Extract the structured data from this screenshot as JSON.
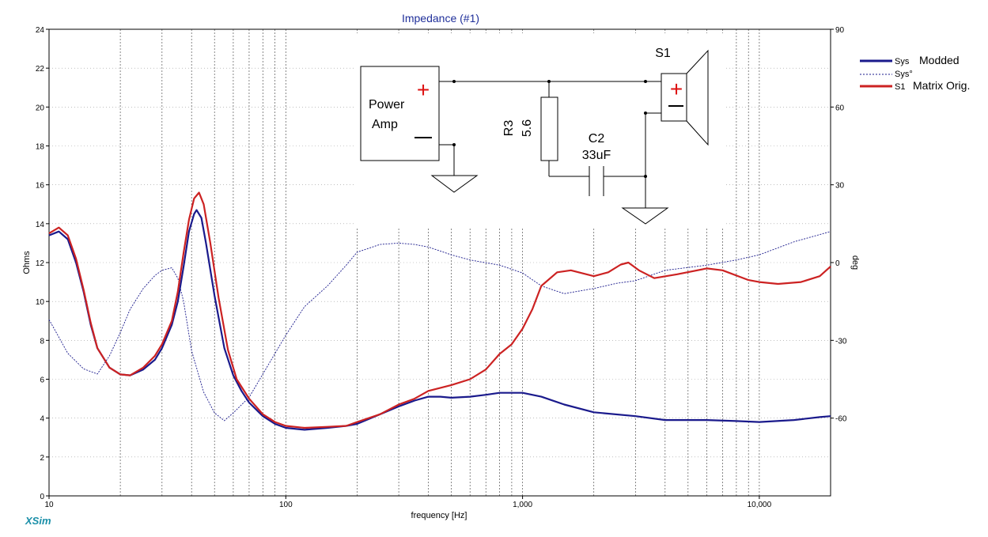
{
  "app": {
    "brand": "XSim"
  },
  "chart_data": {
    "type": "line",
    "title": "Impedance (#1)",
    "xlabel": "frequency [Hz]",
    "ylabel": "Ohms",
    "y2label": "deg",
    "xscale": "log",
    "xlim": [
      10,
      20000
    ],
    "ylim": [
      0,
      24
    ],
    "y2lim": [
      -90,
      90
    ],
    "grid": true,
    "legend_position": "right",
    "x_ticks": [
      {
        "value": 10,
        "label": "10"
      },
      {
        "value": 100,
        "label": "100"
      },
      {
        "value": 1000,
        "label": "1,000"
      },
      {
        "value": 10000,
        "label": "10,000"
      }
    ],
    "y_ticks": [
      0,
      2,
      4,
      6,
      8,
      10,
      12,
      14,
      16,
      18,
      20,
      22,
      24
    ],
    "y2_ticks": [
      90,
      60,
      30,
      0,
      -30,
      -60
    ],
    "series": [
      {
        "name": "Modded",
        "legend_prefix": "Sys",
        "axis": "left",
        "color": "#1a1a8c",
        "style": "solid",
        "points": [
          [
            10,
            13.4
          ],
          [
            11,
            13.6
          ],
          [
            12,
            13.2
          ],
          [
            13,
            12.0
          ],
          [
            14,
            10.5
          ],
          [
            15,
            8.8
          ],
          [
            16,
            7.6
          ],
          [
            18,
            6.6
          ],
          [
            20,
            6.25
          ],
          [
            22,
            6.2
          ],
          [
            25,
            6.5
          ],
          [
            28,
            7.0
          ],
          [
            30,
            7.6
          ],
          [
            33,
            8.8
          ],
          [
            35,
            10.0
          ],
          [
            37,
            11.8
          ],
          [
            39,
            13.6
          ],
          [
            41,
            14.5
          ],
          [
            42,
            14.7
          ],
          [
            44,
            14.3
          ],
          [
            46,
            13.0
          ],
          [
            50,
            10.3
          ],
          [
            55,
            7.6
          ],
          [
            60,
            6.2
          ],
          [
            65,
            5.4
          ],
          [
            70,
            4.8
          ],
          [
            80,
            4.1
          ],
          [
            90,
            3.7
          ],
          [
            100,
            3.5
          ],
          [
            120,
            3.4
          ],
          [
            150,
            3.5
          ],
          [
            180,
            3.6
          ],
          [
            200,
            3.7
          ],
          [
            250,
            4.2
          ],
          [
            300,
            4.6
          ],
          [
            350,
            4.9
          ],
          [
            400,
            5.1
          ],
          [
            450,
            5.1
          ],
          [
            500,
            5.05
          ],
          [
            600,
            5.1
          ],
          [
            700,
            5.2
          ],
          [
            800,
            5.3
          ],
          [
            1000,
            5.3
          ],
          [
            1200,
            5.1
          ],
          [
            1500,
            4.7
          ],
          [
            2000,
            4.3
          ],
          [
            3000,
            4.1
          ],
          [
            4000,
            3.9
          ],
          [
            6000,
            3.9
          ],
          [
            8000,
            3.85
          ],
          [
            10000,
            3.8
          ],
          [
            14000,
            3.9
          ],
          [
            18000,
            4.05
          ],
          [
            20000,
            4.1
          ]
        ]
      },
      {
        "name": "Sys°",
        "axis": "right",
        "color": "#1a1a8c",
        "style": "dotted",
        "points": [
          [
            10,
            -22
          ],
          [
            12,
            -35
          ],
          [
            14,
            -41
          ],
          [
            16,
            -43
          ],
          [
            18,
            -36
          ],
          [
            20,
            -27
          ],
          [
            22,
            -18
          ],
          [
            25,
            -10
          ],
          [
            28,
            -5
          ],
          [
            30,
            -3
          ],
          [
            33,
            -2
          ],
          [
            35,
            -6
          ],
          [
            37,
            -15
          ],
          [
            40,
            -34
          ],
          [
            45,
            -50
          ],
          [
            50,
            -58
          ],
          [
            55,
            -61
          ],
          [
            60,
            -58
          ],
          [
            70,
            -52
          ],
          [
            80,
            -43
          ],
          [
            100,
            -28
          ],
          [
            120,
            -17
          ],
          [
            150,
            -9
          ],
          [
            180,
            -1
          ],
          [
            200,
            4
          ],
          [
            250,
            7
          ],
          [
            300,
            7.5
          ],
          [
            350,
            7
          ],
          [
            400,
            6
          ],
          [
            500,
            3
          ],
          [
            600,
            1
          ],
          [
            800,
            -1
          ],
          [
            1000,
            -4
          ],
          [
            1200,
            -9
          ],
          [
            1500,
            -12
          ],
          [
            2000,
            -10
          ],
          [
            2500,
            -8
          ],
          [
            3000,
            -7
          ],
          [
            4000,
            -3
          ],
          [
            6000,
            -1
          ],
          [
            8000,
            1
          ],
          [
            10000,
            3
          ],
          [
            14000,
            8
          ],
          [
            20000,
            12
          ]
        ]
      },
      {
        "name": "Matrix Orig.",
        "legend_prefix": "S1",
        "axis": "left",
        "color": "#cc2222",
        "style": "solid",
        "points": [
          [
            10,
            13.5
          ],
          [
            11,
            13.8
          ],
          [
            12,
            13.4
          ],
          [
            13,
            12.2
          ],
          [
            14,
            10.6
          ],
          [
            15,
            8.9
          ],
          [
            16,
            7.6
          ],
          [
            18,
            6.6
          ],
          [
            20,
            6.25
          ],
          [
            22,
            6.2
          ],
          [
            25,
            6.6
          ],
          [
            28,
            7.2
          ],
          [
            30,
            7.8
          ],
          [
            33,
            9.0
          ],
          [
            35,
            10.5
          ],
          [
            37,
            12.5
          ],
          [
            39,
            14.2
          ],
          [
            41,
            15.3
          ],
          [
            43,
            15.6
          ],
          [
            45,
            15.0
          ],
          [
            48,
            13.0
          ],
          [
            52,
            10.2
          ],
          [
            57,
            7.5
          ],
          [
            62,
            6.0
          ],
          [
            70,
            5.0
          ],
          [
            80,
            4.2
          ],
          [
            90,
            3.8
          ],
          [
            100,
            3.6
          ],
          [
            120,
            3.5
          ],
          [
            150,
            3.55
          ],
          [
            180,
            3.6
          ],
          [
            200,
            3.8
          ],
          [
            250,
            4.2
          ],
          [
            300,
            4.7
          ],
          [
            350,
            5.0
          ],
          [
            400,
            5.4
          ],
          [
            500,
            5.7
          ],
          [
            600,
            6.0
          ],
          [
            700,
            6.5
          ],
          [
            800,
            7.3
          ],
          [
            900,
            7.8
          ],
          [
            1000,
            8.6
          ],
          [
            1100,
            9.6
          ],
          [
            1200,
            10.8
          ],
          [
            1400,
            11.5
          ],
          [
            1600,
            11.6
          ],
          [
            2000,
            11.3
          ],
          [
            2300,
            11.5
          ],
          [
            2600,
            11.9
          ],
          [
            2800,
            12.0
          ],
          [
            3100,
            11.6
          ],
          [
            3600,
            11.2
          ],
          [
            4500,
            11.4
          ],
          [
            6000,
            11.7
          ],
          [
            7000,
            11.6
          ],
          [
            9000,
            11.1
          ],
          [
            10000,
            11.0
          ],
          [
            12000,
            10.9
          ],
          [
            15000,
            11.0
          ],
          [
            18000,
            11.3
          ],
          [
            20000,
            11.8
          ]
        ]
      }
    ]
  },
  "schematic": {
    "amp_label_line1": "Power",
    "amp_label_line2": "Amp",
    "resistor_name": "R3",
    "resistor_value": "5.6",
    "cap_name": "C2",
    "cap_value": "33uF",
    "speaker_name": "S1",
    "plus_sign": "+",
    "minus_sign": "—"
  }
}
